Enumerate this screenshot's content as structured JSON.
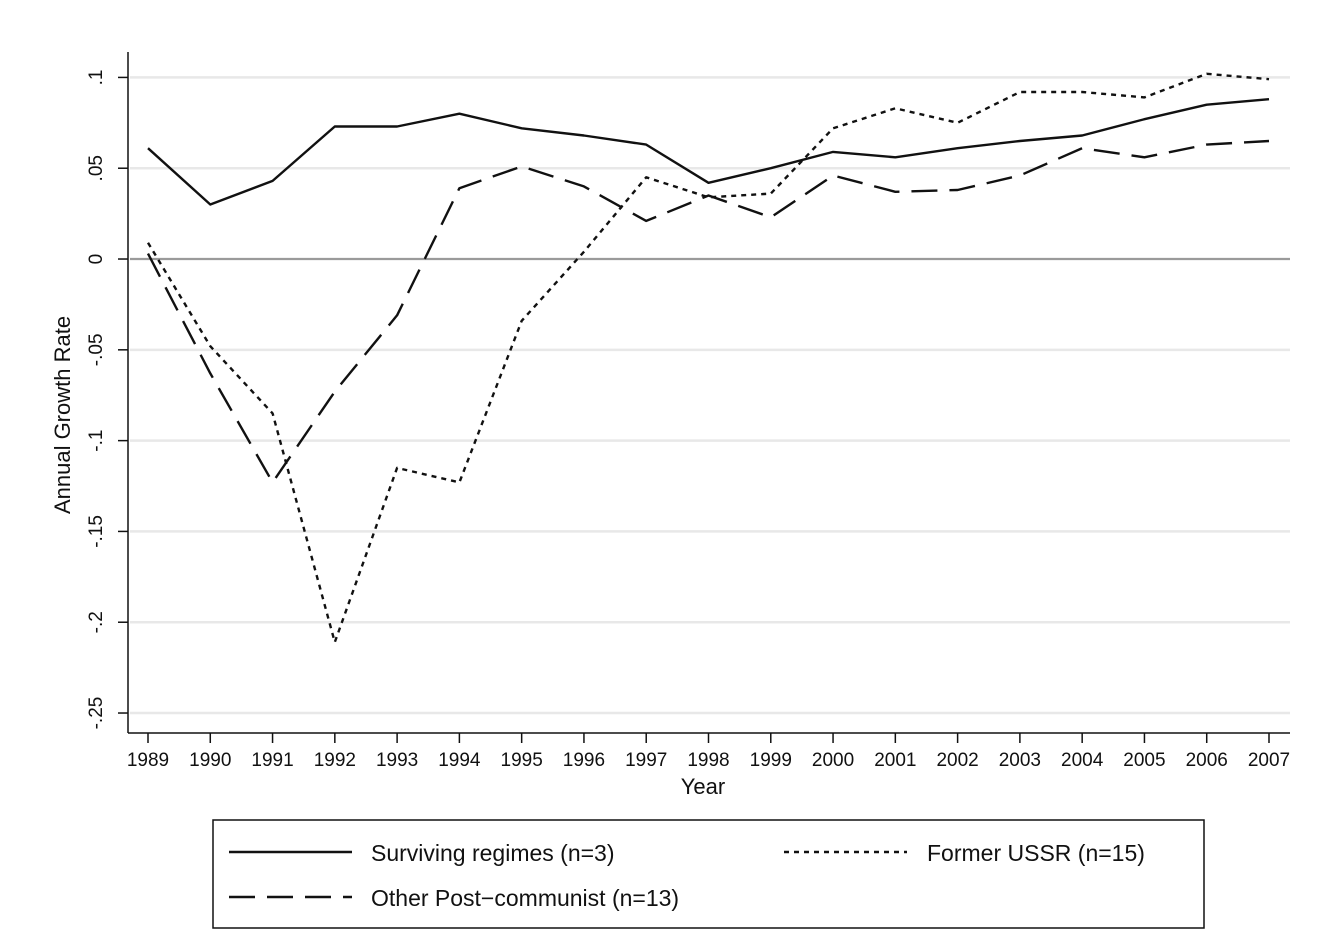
{
  "chart_data": {
    "type": "line",
    "title": "",
    "xlabel": "Year",
    "ylabel": "Annual Growth Rate",
    "x": [
      1989,
      1990,
      1991,
      1992,
      1993,
      1994,
      1995,
      1996,
      1997,
      1998,
      1999,
      2000,
      2001,
      2002,
      2003,
      2004,
      2005,
      2006,
      2007
    ],
    "x_tick_labels": [
      "1989",
      "1990",
      "1991",
      "1992",
      "1993",
      "1994",
      "1995",
      "1996",
      "1997",
      "1998",
      "1999",
      "2000",
      "2001",
      "2002",
      "2003",
      "2004",
      "2005",
      "2006",
      "2007"
    ],
    "y_ticks": [
      0.1,
      0.05,
      0,
      -0.05,
      -0.1,
      -0.15,
      -0.2,
      -0.25
    ],
    "y_tick_labels": [
      ".1",
      ".05",
      "0",
      "-.05",
      "-.1",
      "-.15",
      "-.2",
      "-.25"
    ],
    "ylim": [
      -0.261,
      0.114
    ],
    "xlim": [
      1989,
      2007
    ],
    "grid": true,
    "zero_line": true,
    "legend_position": "bottom",
    "series": [
      {
        "name": "Surviving regimes (n=3)",
        "style": "solid",
        "values": [
          0.061,
          0.03,
          0.043,
          0.073,
          0.073,
          0.08,
          0.072,
          0.068,
          0.063,
          0.042,
          0.05,
          0.059,
          0.056,
          0.061,
          0.065,
          0.068,
          0.077,
          0.085,
          0.088
        ]
      },
      {
        "name": "Former USSR (n=15)",
        "style": "dotted",
        "values": [
          0.009,
          -0.048,
          -0.085,
          -0.211,
          -0.115,
          -0.123,
          -0.034,
          0.004,
          0.045,
          0.034,
          0.036,
          0.072,
          0.083,
          0.075,
          0.092,
          0.092,
          0.089,
          0.102,
          0.099
        ]
      },
      {
        "name": "Other Post−communist (n=13)",
        "style": "dashed",
        "values": [
          0.003,
          -0.063,
          -0.123,
          -0.073,
          -0.031,
          0.039,
          0.051,
          0.04,
          0.021,
          0.035,
          0.023,
          0.046,
          0.037,
          0.038,
          0.046,
          0.061,
          0.056,
          0.063,
          0.065
        ]
      }
    ],
    "colors": {
      "line": "#111111",
      "grid": "#e8e8e8",
      "zero": "#9a9a9a"
    }
  }
}
